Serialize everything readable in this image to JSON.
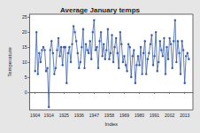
{
  "chart_data": {
    "type": "line",
    "title": "Average January temps",
    "x_label": "Index",
    "y_label": "Temperature",
    "x": [
      1904,
      1905,
      1906,
      1907,
      1908,
      1909,
      1910,
      1911,
      1912,
      1913,
      1914,
      1915,
      1916,
      1917,
      1918,
      1919,
      1920,
      1921,
      1922,
      1923,
      1924,
      1925,
      1926,
      1927,
      1928,
      1929,
      1930,
      1931,
      1932,
      1933,
      1934,
      1935,
      1936,
      1937,
      1938,
      1939,
      1940,
      1941,
      1942,
      1943,
      1944,
      1945,
      1946,
      1947,
      1948,
      1949,
      1950,
      1951,
      1952,
      1953,
      1954,
      1955,
      1956,
      1957,
      1958,
      1959,
      1960,
      1961,
      1962,
      1963,
      1964,
      1965,
      1966,
      1967,
      1968,
      1969,
      1970,
      1971,
      1972,
      1973,
      1974,
      1975,
      1976,
      1977,
      1978,
      1979,
      1980,
      1981,
      1982,
      1983,
      1984,
      1985,
      1986,
      1987,
      1988,
      1989,
      1990,
      1991,
      1992,
      1993,
      1994,
      1995,
      1996,
      1997,
      1998,
      1999,
      2000,
      2001,
      2002,
      2003,
      2004,
      2005,
      2006,
      2007,
      2008,
      2009,
      2010,
      2011,
      2012,
      2013,
      2014,
      2015,
      2016
    ],
    "values": [
      7,
      20,
      6,
      13,
      10,
      14,
      15,
      14,
      7,
      8,
      -5,
      14,
      17,
      13,
      6,
      8,
      14,
      18,
      12,
      15,
      9,
      15,
      15,
      3,
      13,
      15,
      10,
      16,
      22,
      20,
      17,
      13,
      8,
      10,
      15,
      21,
      8,
      16,
      14,
      13,
      17,
      11,
      20,
      24,
      14,
      15,
      8,
      17,
      20,
      12,
      16,
      11,
      14,
      21,
      11,
      13,
      19,
      10,
      15,
      18,
      13,
      8,
      20,
      16,
      10,
      12,
      9,
      7,
      16,
      15,
      5,
      12,
      14,
      3,
      9,
      12,
      9,
      15,
      6,
      13,
      17,
      6,
      11,
      13,
      16,
      19,
      9,
      12,
      20,
      7,
      10,
      17,
      14,
      12,
      18,
      6,
      15,
      11,
      18,
      16,
      8,
      17,
      24,
      10,
      17,
      13,
      6,
      17,
      14,
      3,
      12,
      13,
      11
    ],
    "color": "#3a5ea8",
    "marker": "circle",
    "xlim": [
      1900,
      2019
    ],
    "xticks": [
      1904,
      1914,
      1925,
      1936,
      1947,
      1958,
      1969,
      1980,
      1991,
      2002,
      2013
    ],
    "ylim": [
      -6,
      26
    ],
    "yticks": [
      0,
      5,
      10,
      15,
      20,
      25
    ],
    "grid": false
  }
}
